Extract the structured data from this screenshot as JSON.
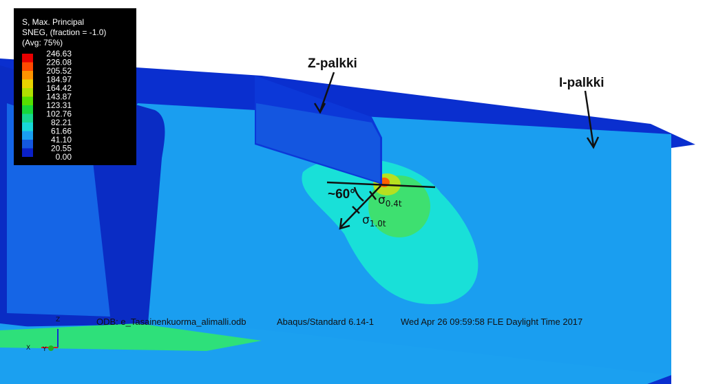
{
  "legend": {
    "title_lines": [
      "S, Max. Principal",
      "SNEG, (fraction = -1.0)",
      "(Avg: 75%)"
    ],
    "values": [
      "246.63",
      "226.08",
      "205.52",
      "184.97",
      "164.42",
      "143.87",
      "123.31",
      "102.76",
      "82.21",
      "61.66",
      "41.10",
      "20.55",
      "0.00"
    ]
  },
  "annotations": {
    "z_beam": "Z-palkki",
    "i_beam": "I-palkki",
    "angle": "~60°",
    "stress_near": {
      "symbol": "σ",
      "subscript": "0.4t"
    },
    "stress_far": {
      "symbol": "σ",
      "subscript": "1.0t"
    }
  },
  "footer": {
    "odb": "ODB: e_Tasainenkuorma_alimalli.odb",
    "solver": "Abaqus/Standard 6.14-1",
    "date": "Wed Apr 26 09:59:58 FLE Daylight Time 2017"
  },
  "triad": {
    "z": "Z",
    "x": "X",
    "y": "Y"
  }
}
